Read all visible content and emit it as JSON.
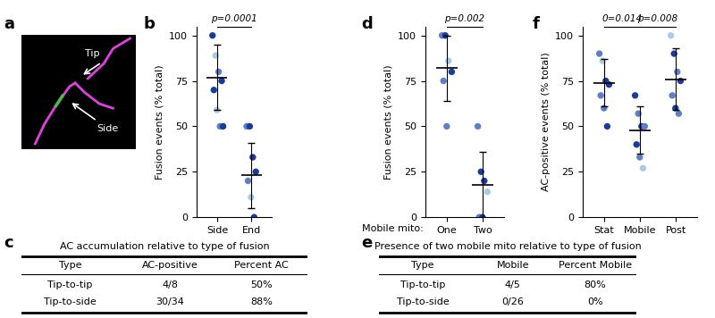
{
  "panel_labels": [
    "a",
    "b",
    "c",
    "d",
    "e",
    "f"
  ],
  "diagram": {
    "tip_label": "Tip",
    "side_label": "Side"
  },
  "chart_data": [
    {
      "type": "scatter",
      "ylabel": "Fusion events (% total)",
      "categories": [
        "Side",
        "End"
      ],
      "values": [
        [
          100,
          89,
          80,
          75,
          70,
          59,
          50,
          50
        ],
        [
          50,
          50,
          33,
          25,
          20,
          11,
          0
        ]
      ],
      "colors": [
        [
          "#1a3a9c",
          "#a9cbe8",
          "#5e7fc8",
          "#1a3a9c",
          "#1a3a9c",
          "#a9cbe8",
          "#5e7fc8",
          "#1a3a9c"
        ],
        [
          "#5e7fc8",
          "#1a3a9c",
          "#1a3a9c",
          "#1a3a9c",
          "#5e7fc8",
          "#a9cbe8",
          "#1a3a9c"
        ]
      ],
      "means": [
        77,
        23
      ],
      "error_bars": [
        18,
        18
      ],
      "ylim": [
        0,
        105
      ],
      "yticks": [
        0,
        25,
        50,
        75,
        100
      ],
      "annotations": [
        {
          "text": "p=0.0001",
          "groups": [
            "Side",
            "End"
          ]
        }
      ]
    },
    {
      "type": "scatter",
      "ylabel": "Fusion events (% total)",
      "xlabel": "Mobile mito:",
      "categories": [
        "One",
        "Two"
      ],
      "values": [
        [
          100,
          100,
          86,
          80,
          75,
          50
        ],
        [
          50,
          25,
          20,
          14,
          0,
          0
        ]
      ],
      "colors": [
        [
          "#5e7fc8",
          "#1a3a9c",
          "#a9cbe8",
          "#1a3a9c",
          "#5e7fc8",
          "#5e7fc8"
        ],
        [
          "#5e7fc8",
          "#1a3a9c",
          "#1a3a9c",
          "#a9cbe8",
          "#5e7fc8",
          "#1a3a9c"
        ]
      ],
      "means": [
        82,
        18
      ],
      "error_bars": [
        18,
        18
      ],
      "ylim": [
        0,
        105
      ],
      "yticks": [
        0,
        25,
        50,
        75,
        100
      ],
      "annotations": [
        {
          "text": "p=0.002",
          "groups": [
            "One",
            "Two"
          ]
        }
      ]
    },
    {
      "type": "scatter",
      "ylabel": "AC-positive events (% total)",
      "categories": [
        "Stat",
        "Mobile",
        "Post"
      ],
      "values": [
        [
          90,
          86,
          75,
          73,
          67,
          60,
          50
        ],
        [
          67,
          57,
          50,
          50,
          40,
          33,
          27
        ],
        [
          100,
          90,
          80,
          75,
          67,
          60,
          57
        ]
      ],
      "colors": [
        [
          "#5e7fc8",
          "#a9cbe8",
          "#1a3a9c",
          "#1a3a9c",
          "#5e7fc8",
          "#5e7fc8",
          "#1a3a9c"
        ],
        [
          "#1a3a9c",
          "#5e7fc8",
          "#1a3a9c",
          "#5e7fc8",
          "#1a3a9c",
          "#5e7fc8",
          "#a9cbe8"
        ],
        [
          "#a9cbe8",
          "#1a3a9c",
          "#5e7fc8",
          "#1a3a9c",
          "#5e7fc8",
          "#1a3a9c",
          "#5e7fc8"
        ]
      ],
      "means": [
        74,
        48,
        76
      ],
      "error_bars": [
        13,
        13,
        17
      ],
      "ylim": [
        0,
        105
      ],
      "yticks": [
        0,
        25,
        50,
        75,
        100
      ],
      "annotations": [
        {
          "text": "0=0.014",
          "groups": [
            "Stat",
            "Mobile"
          ]
        },
        {
          "text": "p=0.008",
          "groups": [
            "Mobile",
            "Post"
          ]
        }
      ]
    }
  ],
  "tables": [
    {
      "title": "AC accumulation relative to type of fusion",
      "header": [
        "Type",
        "AC-positive",
        "Percent AC"
      ],
      "rows": [
        [
          "Tip-to-tip",
          "4/8",
          "50%"
        ],
        [
          "Tip-to-side",
          "30/34",
          "88%"
        ]
      ]
    },
    {
      "title": "Presence of two mobile mito relative to type of fusion",
      "header": [
        "Type",
        "Mobile",
        "Percent Mobile"
      ],
      "rows": [
        [
          "Tip-to-tip",
          "4/5",
          "80%"
        ],
        [
          "Tip-to-side",
          "0/26",
          "0%"
        ]
      ]
    }
  ]
}
